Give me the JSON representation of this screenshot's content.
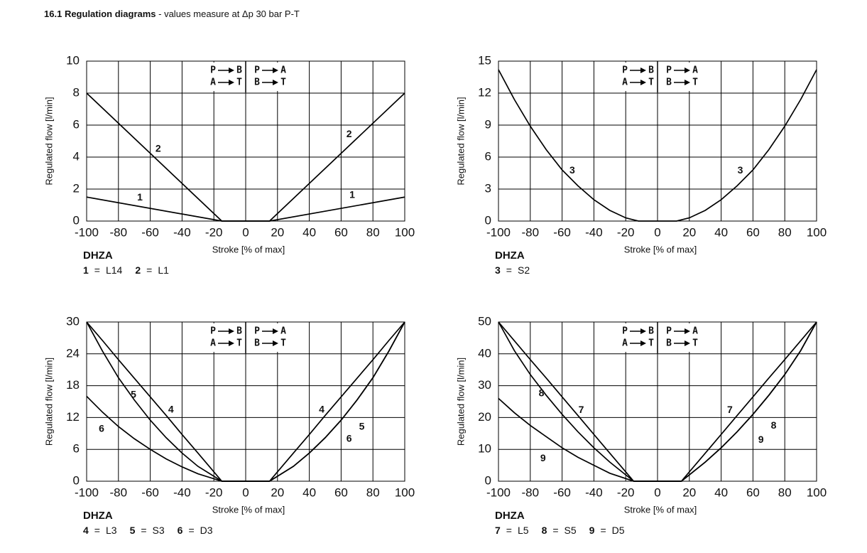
{
  "section": "16.1",
  "heading": "Regulation diagrams",
  "subtitle": "- values measure at Δp 30 bar P-T",
  "flow_labels": [
    [
      "P",
      "B",
      "P",
      "A"
    ],
    [
      "A",
      "T",
      "B",
      "T"
    ]
  ],
  "legend_sep": "=",
  "chart_data": [
    {
      "type": "line",
      "model": "DHZA",
      "xlabel": "Stroke [% of max]",
      "ylabel": "Regulated flow [l/min]",
      "xlim": [
        -100,
        100
      ],
      "xticks": [
        -100,
        -80,
        -60,
        -40,
        -20,
        0,
        20,
        40,
        60,
        80,
        100
      ],
      "ylim": [
        0,
        10
      ],
      "yticks": [
        0,
        2,
        4,
        6,
        8,
        10
      ],
      "grid": true,
      "x": [
        -100,
        -15,
        15,
        100
      ],
      "series": [
        {
          "name": "1",
          "code": "L14",
          "color": "#000000",
          "values": [
            1.5,
            0,
            0,
            1.5
          ]
        },
        {
          "name": "2",
          "code": "L1",
          "color": "#000000",
          "values": [
            8,
            0,
            0,
            8
          ]
        }
      ]
    },
    {
      "type": "line",
      "model": "DHZA",
      "xlabel": "Stroke [% of max]",
      "ylabel": "Regulated flow [l/min]",
      "xlim": [
        -100,
        100
      ],
      "xticks": [
        -100,
        -80,
        -60,
        -40,
        -20,
        0,
        20,
        40,
        60,
        80,
        100
      ],
      "ylim": [
        0,
        15
      ],
      "yticks": [
        0,
        3,
        6,
        9,
        12,
        15
      ],
      "grid": true,
      "x": [
        -100,
        -90,
        -80,
        -70,
        -60,
        -50,
        -40,
        -30,
        -20,
        -12,
        12,
        20,
        30,
        40,
        50,
        60,
        70,
        80,
        90,
        100
      ],
      "series": [
        {
          "name": "3",
          "code": "S2",
          "color": "#000000",
          "values": [
            14.2,
            11.4,
            8.9,
            6.7,
            4.8,
            3.3,
            2.0,
            1.0,
            0.3,
            0,
            0,
            0.3,
            1.0,
            2.0,
            3.3,
            4.8,
            6.7,
            8.9,
            11.4,
            14.2
          ]
        }
      ]
    },
    {
      "type": "line",
      "model": "DHZA",
      "xlabel": "Stroke [% of max]",
      "ylabel": "Regulated flow [l/min]",
      "xlim": [
        -100,
        100
      ],
      "xticks": [
        -100,
        -80,
        -60,
        -40,
        -20,
        0,
        20,
        40,
        60,
        80,
        100
      ],
      "ylim": [
        0,
        30
      ],
      "yticks": [
        0,
        6,
        12,
        18,
        24,
        30
      ],
      "grid": true,
      "x": [
        -100,
        -90,
        -80,
        -70,
        -60,
        -50,
        -40,
        -30,
        -15,
        15,
        30,
        40,
        50,
        60,
        70,
        80,
        90,
        100
      ],
      "series": [
        {
          "name": "4",
          "code": "L3",
          "color": "#000000",
          "values": [
            30,
            26.5,
            22.9,
            19.4,
            15.9,
            12.4,
            8.8,
            5.3,
            0,
            0,
            5.3,
            8.8,
            12.4,
            15.9,
            19.4,
            22.9,
            26.5,
            30
          ]
        },
        {
          "name": "5",
          "code": "S3",
          "color": "#000000",
          "values": [
            30,
            24.5,
            19.5,
            15.3,
            11.5,
            8.2,
            5.3,
            2.8,
            0,
            0,
            2.8,
            5.3,
            8.2,
            11.5,
            15.3,
            19.5,
            24.5,
            30
          ]
        },
        {
          "name": "6",
          "code": "D3",
          "color": "#000000",
          "values": [
            16,
            13,
            10.3,
            8,
            6,
            4.2,
            2.7,
            1.4,
            0,
            0,
            2.8,
            5.3,
            8.2,
            11.5,
            15.3,
            19.5,
            24.5,
            30
          ]
        }
      ]
    },
    {
      "type": "line",
      "model": "DHZA",
      "xlabel": "Stroke [% of max]",
      "ylabel": "Regulated flow [l/min]",
      "xlim": [
        -100,
        100
      ],
      "xticks": [
        -100,
        -80,
        -60,
        -40,
        -20,
        0,
        20,
        40,
        60,
        80,
        100
      ],
      "ylim": [
        0,
        50
      ],
      "yticks": [
        0,
        10,
        20,
        30,
        40,
        50
      ],
      "grid": true,
      "x": [
        -100,
        -90,
        -80,
        -70,
        -60,
        -50,
        -40,
        -30,
        -15,
        15,
        30,
        40,
        50,
        60,
        70,
        80,
        90,
        100
      ],
      "series": [
        {
          "name": "7",
          "code": "L5",
          "color": "#000000",
          "values": [
            50,
            44.1,
            38.2,
            32.4,
            26.5,
            20.6,
            14.7,
            8.8,
            0,
            0,
            8.8,
            14.7,
            20.6,
            26.5,
            32.4,
            38.2,
            44.1,
            50
          ]
        },
        {
          "name": "8",
          "code": "S5",
          "color": "#000000",
          "values": [
            50,
            41,
            33.5,
            27,
            21,
            15.5,
            10.5,
            6,
            0,
            0,
            6,
            10.5,
            15.5,
            21,
            27,
            33.5,
            41,
            50
          ]
        },
        {
          "name": "9",
          "code": "D5",
          "color": "#000000",
          "values": [
            26,
            21.5,
            17.5,
            14,
            10.5,
            7.5,
            5,
            2.5,
            0,
            0,
            6,
            10.5,
            15.5,
            21,
            27,
            33.5,
            41,
            50
          ]
        }
      ]
    }
  ]
}
